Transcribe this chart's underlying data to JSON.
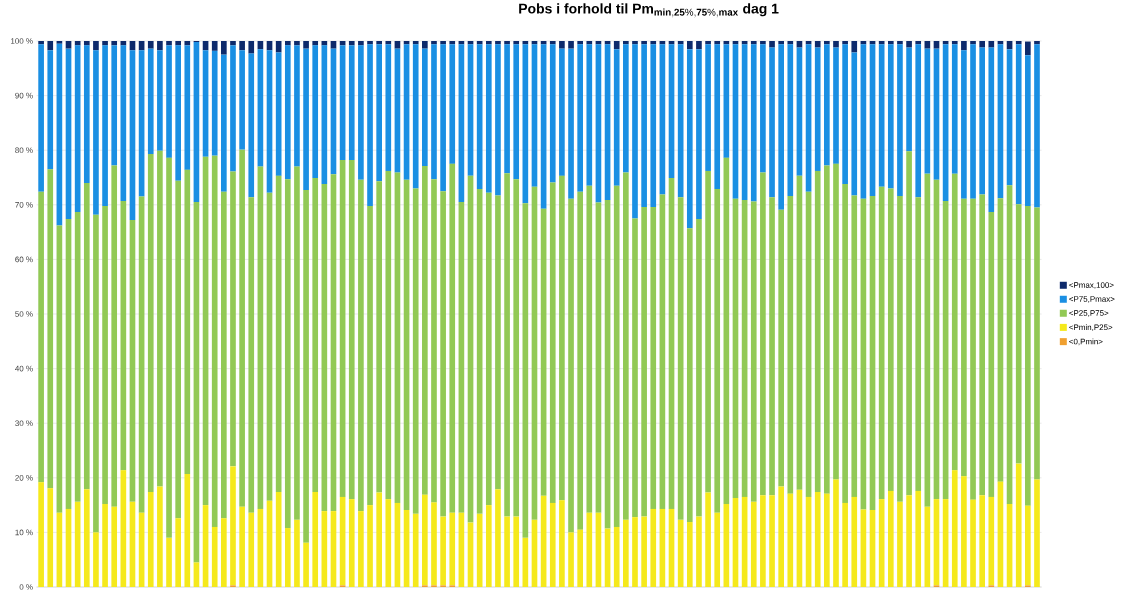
{
  "chart_data": {
    "type": "bar",
    "title": "\\mathbf{Pobs\\ i\\ forhold\\ til\\ Pm}_{\\mathbf{min,25\\%,75\\%,max}}\\mathbf{\\ dag\\ 1}",
    "stacked": true,
    "grid": "y",
    "legend": "right",
    "ylim": [
      0,
      100
    ],
    "yticks": [
      {
        "value": 0,
        "label": "0 %"
      },
      {
        "value": 10,
        "label": "10 %"
      },
      {
        "value": 20,
        "label": "20 %"
      },
      {
        "value": 30,
        "label": "30 %"
      },
      {
        "value": 40,
        "label": "40 %"
      },
      {
        "value": 50,
        "label": "50 %"
      },
      {
        "value": 60,
        "label": "60 %"
      },
      {
        "value": 70,
        "label": "70 %"
      },
      {
        "value": 80,
        "label": "80 %"
      },
      {
        "value": 90,
        "label": "90 %"
      },
      {
        "value": 100,
        "label": "100 %"
      }
    ],
    "categories": [
      null,
      null,
      null,
      null,
      null,
      null,
      null,
      null,
      null,
      null,
      null,
      null,
      null,
      null,
      null,
      null,
      null,
      null,
      null,
      null,
      null,
      null,
      null,
      null,
      null,
      null,
      null,
      null,
      null,
      null,
      null,
      null,
      null,
      null,
      null,
      null,
      null,
      null,
      null,
      null,
      null,
      null,
      null,
      null,
      null,
      null,
      null,
      null,
      null,
      null,
      null,
      null,
      null,
      null,
      null,
      null,
      null,
      null,
      null,
      null,
      null,
      null,
      null,
      null,
      null,
      null,
      null,
      null,
      null,
      null,
      null,
      null,
      null,
      null,
      null,
      null,
      null,
      null,
      null,
      null,
      null,
      null,
      null,
      null,
      null,
      null,
      null,
      null,
      null,
      null,
      null,
      null,
      null,
      null,
      null,
      null,
      null,
      null,
      null,
      null,
      null,
      null,
      null,
      null,
      null,
      null,
      null,
      null,
      null,
      null
    ],
    "series": [
      {
        "name": "<0,Pmin>",
        "color": "#f0a030",
        "values": [
          0,
          0,
          0,
          0,
          0,
          0,
          0,
          0,
          0,
          0,
          0,
          0,
          0,
          0,
          0,
          0,
          0,
          0,
          0,
          0,
          0,
          0.3,
          0,
          0,
          0,
          0,
          0,
          0,
          0,
          0,
          0,
          0,
          0,
          0.3,
          0,
          0,
          0,
          0,
          0,
          0,
          0,
          0,
          0.3,
          0.3,
          0.3,
          0.3,
          0,
          0,
          0,
          0,
          0,
          0,
          0,
          0,
          0,
          0,
          0,
          0,
          0,
          0,
          0,
          0,
          0,
          0,
          0,
          0,
          0,
          0,
          0,
          0,
          0,
          0,
          0,
          0,
          0,
          0,
          0,
          0,
          0,
          0,
          0,
          0,
          0,
          0,
          0,
          0,
          0,
          0,
          0,
          0,
          0,
          0,
          0,
          0,
          0,
          0,
          0,
          0,
          0.3,
          0,
          0,
          0,
          0,
          0,
          0.3,
          0,
          0,
          0,
          0.3,
          0
        ]
      },
      {
        "name": "<Pmin,P25>",
        "color": "#f5e91c",
        "values": [
          19.2,
          18.1,
          13.6,
          14.3,
          15.6,
          17.9,
          10.0,
          15.2,
          14.7,
          21.4,
          15.6,
          13.6,
          17.4,
          18.4,
          9.0,
          12.6,
          20.7,
          4.5,
          15.0,
          11.0,
          12.6,
          21.8,
          14.7,
          13.6,
          14.3,
          15.8,
          17.4,
          10.8,
          12.3,
          8.1,
          17.4,
          13.9,
          13.9,
          16.2,
          16.1,
          13.9,
          15.0,
          17.3,
          16.1,
          15.4,
          14.1,
          13.4,
          16.6,
          15.2,
          12.6,
          13.3,
          13.6,
          11.8,
          13.4,
          15.0,
          17.9,
          12.9,
          12.9,
          9.0,
          12.3,
          16.7,
          15.4,
          15.9,
          10.0,
          10.5,
          13.6,
          13.6,
          10.7,
          11.0,
          12.3,
          12.8,
          12.9,
          14.3,
          14.3,
          14.3,
          12.3,
          11.9,
          12.9,
          17.3,
          13.6,
          15.2,
          16.3,
          16.5,
          15.6,
          16.8,
          16.8,
          18.4,
          17.1,
          17.8,
          16.5,
          17.4,
          17.1,
          19.7,
          15.4,
          16.5,
          14.2,
          14.1,
          16.1,
          17.6,
          15.6,
          16.8,
          17.6,
          14.7,
          15.8,
          16.1,
          21.4,
          20.3,
          16.0,
          16.8,
          16.2,
          19.3,
          15.2,
          22.6,
          14.6,
          19.7
        ]
      },
      {
        "name": "<P25,P75>",
        "color": "#92c955",
        "values": [
          53.2,
          58.4,
          52.6,
          53.1,
          53.1,
          56.1,
          58.2,
          54.6,
          62.5,
          49.3,
          51.6,
          57.9,
          61.9,
          61.5,
          69.6,
          61.8,
          55.7,
          66.0,
          63.8,
          68.0,
          59.8,
          54.0,
          65.4,
          57.8,
          62.7,
          56.4,
          57.9,
          63.9,
          64.7,
          64.6,
          57.5,
          59.9,
          61.7,
          61.7,
          62.1,
          60.7,
          54.8,
          57.0,
          60.1,
          60.5,
          60.5,
          59.6,
          60.2,
          59.2,
          59.6,
          63.9,
          56.9,
          63.5,
          59.5,
          57.2,
          53.8,
          62.9,
          61.8,
          61.3,
          61.0,
          52.6,
          58.7,
          59.4,
          61.1,
          61.9,
          59.9,
          56.8,
          60.2,
          62.5,
          63.6,
          54.7,
          56.7,
          55.3,
          57.6,
          60.6,
          59.1,
          53.8,
          54.5,
          58.9,
          59.3,
          63.4,
          54.8,
          54.4,
          55.0,
          59.1,
          54.6,
          50.7,
          54.5,
          57.5,
          55.9,
          58.8,
          60.1,
          57.8,
          58.4,
          55.2,
          56.9,
          57.5,
          57.2,
          55.4,
          56.0,
          63.0,
          53.8,
          61.0,
          58.5,
          54.6,
          54.3,
          50.8,
          55.1,
          55.1,
          52.2,
          51.9,
          58.4,
          47.5,
          54.9,
          49.8
        ]
      },
      {
        "name": "<P75,Pmax>",
        "color": "#1a8fe3",
        "values": [
          27.0,
          21.8,
          33.3,
          31.2,
          30.5,
          25.2,
          30.1,
          29.4,
          22.0,
          28.5,
          31.1,
          26.8,
          19.3,
          18.4,
          20.6,
          24.8,
          22.8,
          29.3,
          19.5,
          19.2,
          25.1,
          23.1,
          18.2,
          26.3,
          21.5,
          26.1,
          22.6,
          24.5,
          22.2,
          25.9,
          24.3,
          25.4,
          23.0,
          21.0,
          21.0,
          24.6,
          29.6,
          25.1,
          23.2,
          22.7,
          24.8,
          26.4,
          21.5,
          24.7,
          26.9,
          21.9,
          28.9,
          24.1,
          26.5,
          27.2,
          27.7,
          23.6,
          24.7,
          29.1,
          26.1,
          30.1,
          25.3,
          23.3,
          27.5,
          27.0,
          25.9,
          29.0,
          28.5,
          25.0,
          23.5,
          31.9,
          29.8,
          29.8,
          27.5,
          24.5,
          28.0,
          32.8,
          31.1,
          23.2,
          26.5,
          20.8,
          28.3,
          28.5,
          28.8,
          23.5,
          27.4,
          30.3,
          27.8,
          23.5,
          27.0,
          22.6,
          22.2,
          21.3,
          25.6,
          26.2,
          28.3,
          27.8,
          26.1,
          26.4,
          27.8,
          19.0,
          28.0,
          22.9,
          24.0,
          28.7,
          23.7,
          27.2,
          28.3,
          26.9,
          30.1,
          28.2,
          24.9,
          29.3,
          27.6,
          29.9
        ]
      },
      {
        "name": "<Pmax,100>",
        "color": "#0d2a6b",
        "values": [
          0.6,
          1.7,
          0.5,
          1.4,
          0.8,
          0.8,
          1.7,
          0.8,
          0.8,
          0.8,
          1.7,
          1.7,
          1.4,
          1.7,
          0.8,
          0.8,
          0.8,
          0.2,
          1.7,
          1.8,
          2.5,
          0.8,
          1.7,
          2.3,
          1.5,
          1.7,
          2.1,
          0.8,
          0.8,
          1.4,
          0.8,
          0.8,
          1.4,
          0.8,
          0.8,
          0.8,
          0.6,
          0.6,
          0.6,
          1.4,
          0.6,
          0.6,
          1.4,
          0.6,
          0.6,
          0.6,
          0.6,
          0.6,
          0.6,
          0.6,
          0.6,
          0.6,
          0.6,
          0.6,
          0.6,
          0.6,
          0.6,
          1.4,
          1.4,
          0.6,
          0.6,
          0.6,
          0.6,
          1.5,
          0.6,
          0.6,
          0.6,
          0.6,
          0.6,
          0.6,
          0.6,
          1.5,
          1.5,
          0.6,
          0.6,
          0.6,
          0.6,
          0.6,
          0.6,
          0.6,
          1.2,
          0.6,
          0.6,
          1.2,
          0.6,
          1.2,
          0.6,
          1.2,
          0.6,
          2.1,
          0.6,
          0.6,
          0.6,
          0.6,
          0.6,
          1.2,
          0.6,
          1.4,
          1.4,
          0.6,
          0.6,
          1.7,
          0.6,
          1.2,
          1.2,
          0.6,
          1.5,
          0.6,
          2.5,
          0.6
        ]
      }
    ]
  }
}
